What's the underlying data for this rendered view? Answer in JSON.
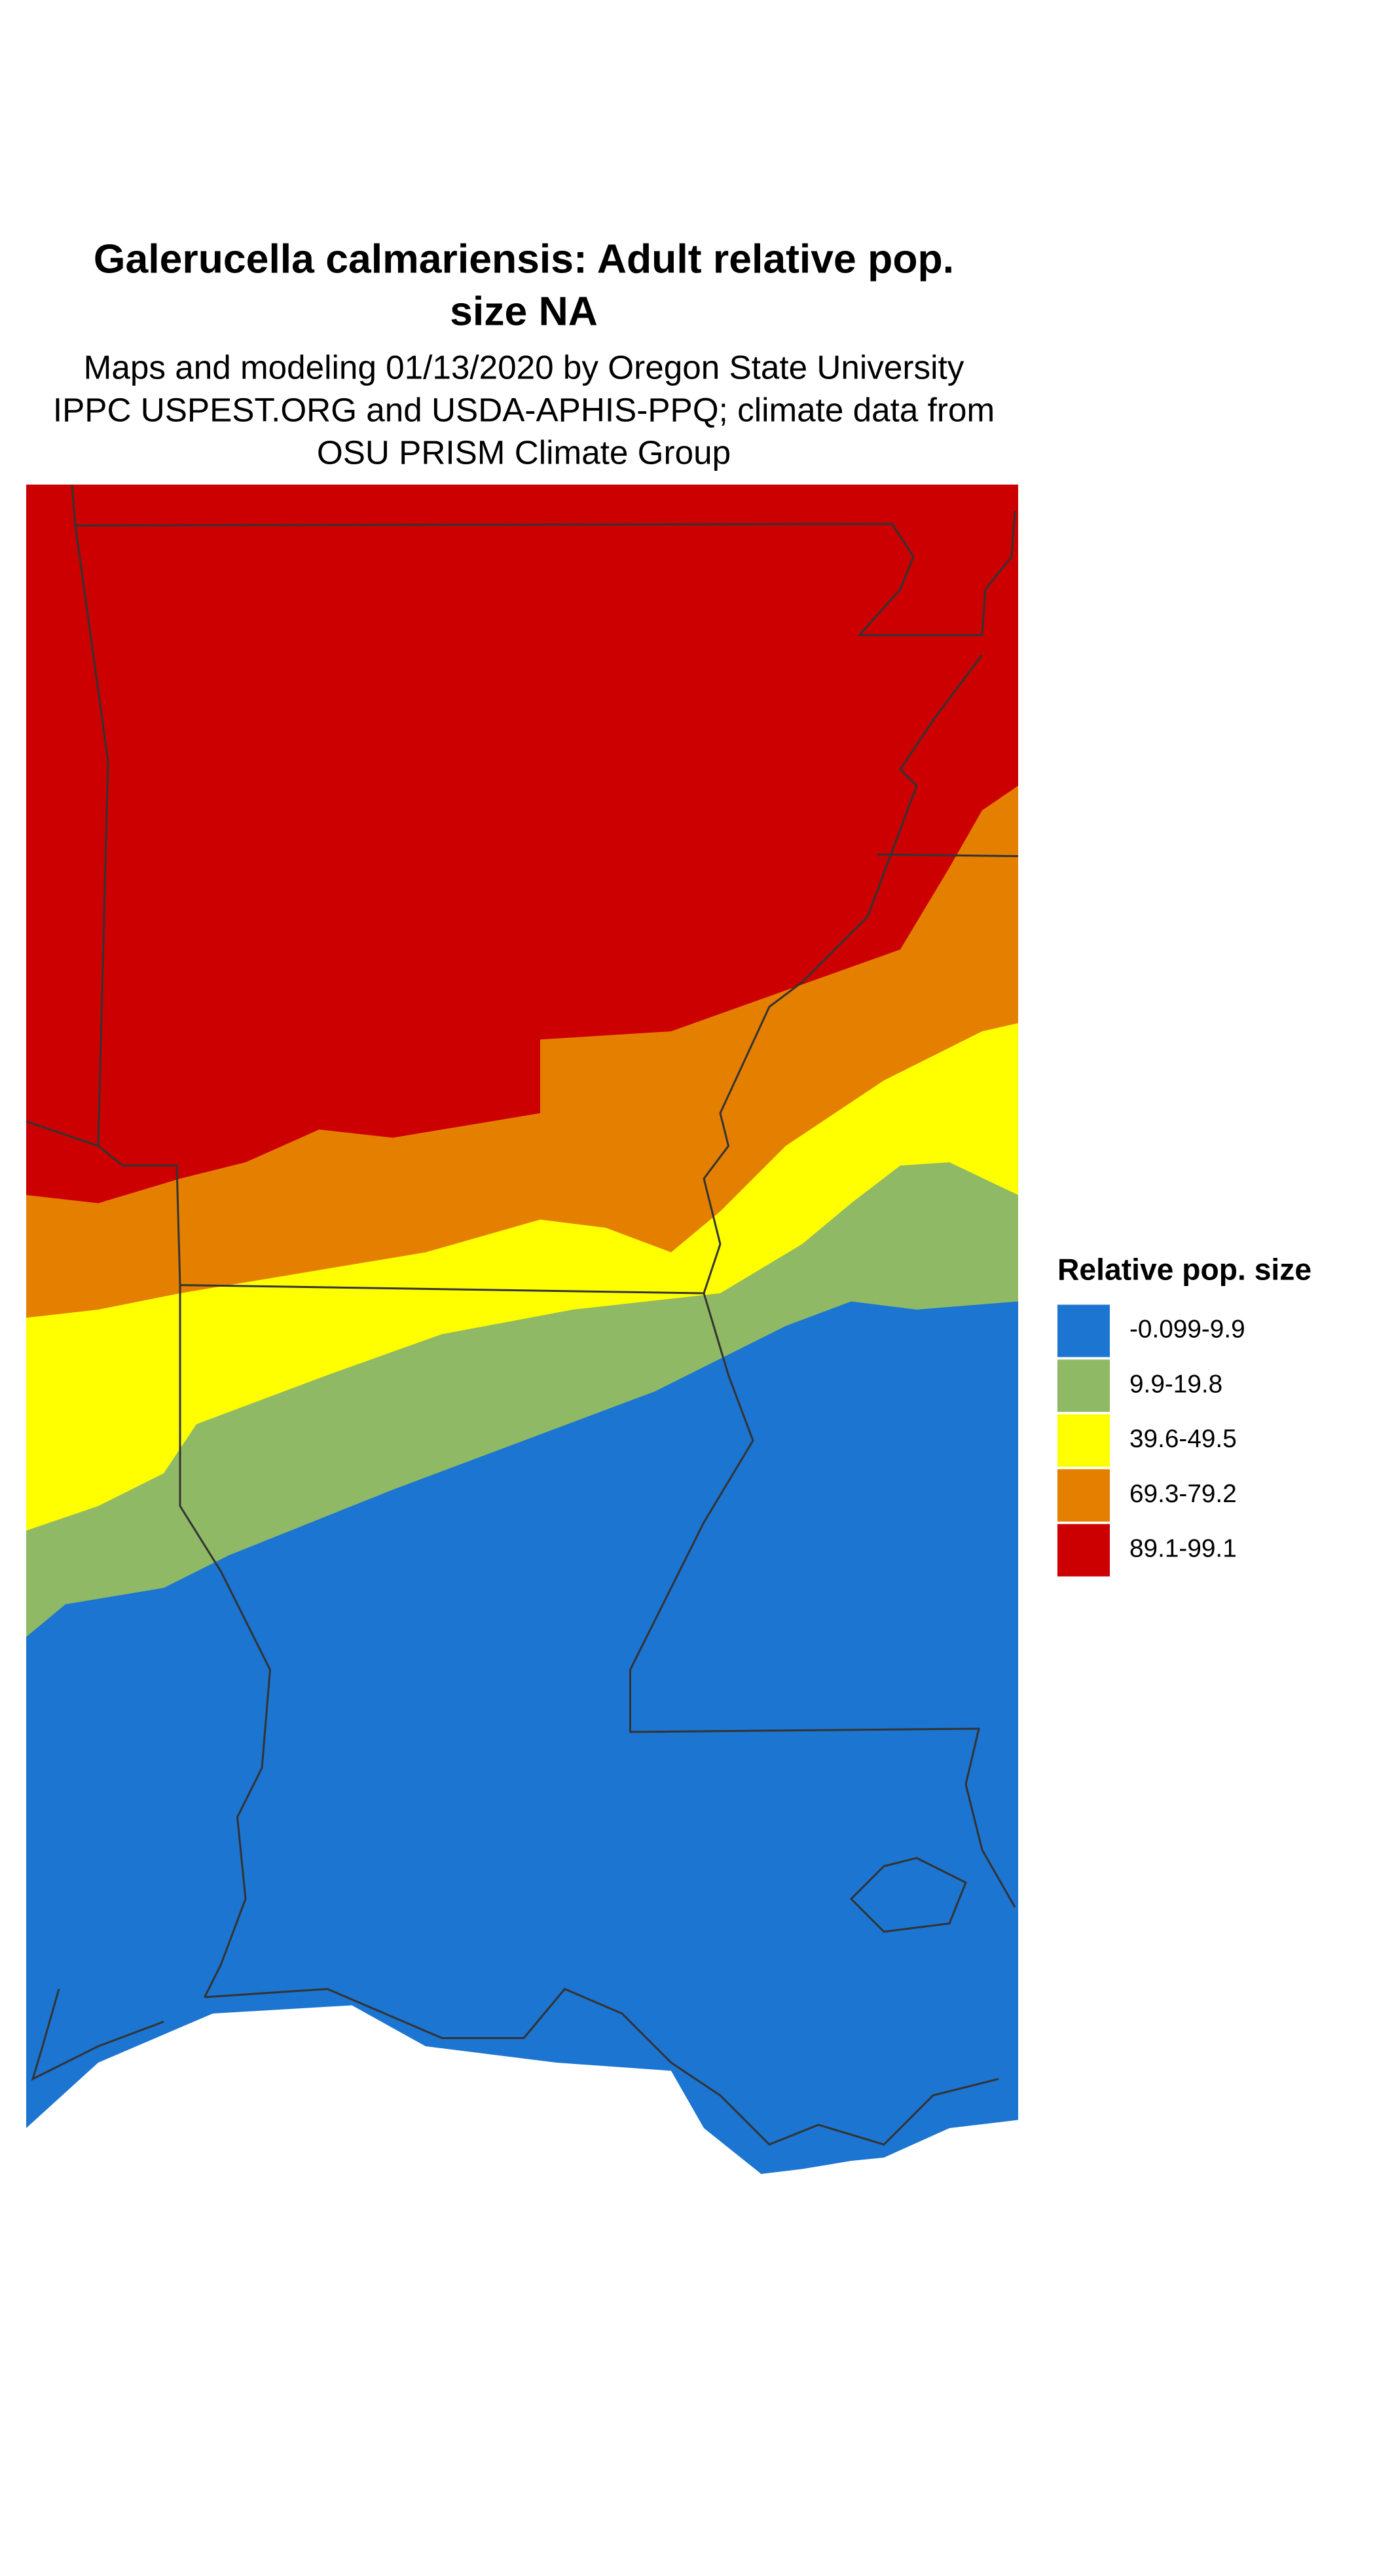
{
  "title": [
    "Galerucella calmariensis: Adult relative pop.",
    "size NA"
  ],
  "subtitle": [
    "Maps and modeling 01/13/2020 by Oregon State University",
    "IPPC USPEST.ORG and USDA-APHIS-PPQ; climate data from",
    "OSU PRISM Climate Group"
  ],
  "legend": {
    "title": "Relative pop. size",
    "items": [
      {
        "label": "-0.099-9.9",
        "color": "#1c75d0"
      },
      {
        "label": "9.9-19.8",
        "color": "#8fb964"
      },
      {
        "label": "39.6-49.5",
        "color": "#ffff00"
      },
      {
        "label": "69.3-79.2",
        "color": "#e57f00"
      },
      {
        "label": "89.1-99.1",
        "color": "#cc0000"
      }
    ]
  }
}
